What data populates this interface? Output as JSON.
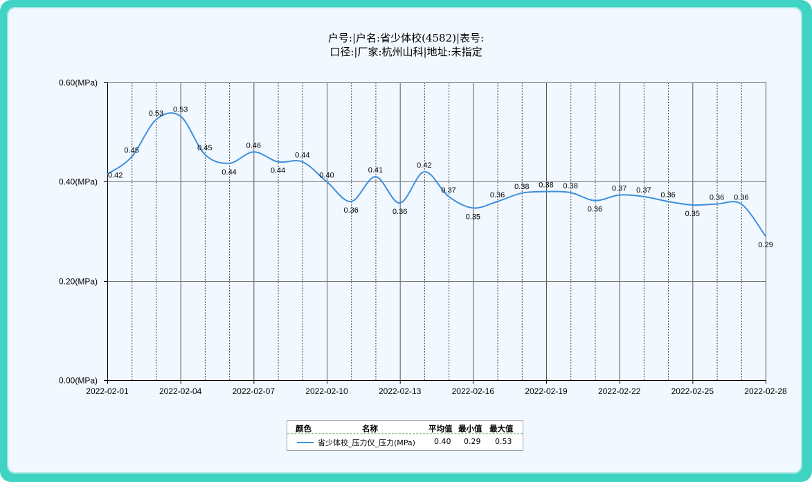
{
  "title_line1": "户号:|户名:省少体校(4582)|表号:",
  "title_line2": "口径:|厂家:杭州山科|地址:未指定",
  "colors": {
    "series": "#3d8fdc",
    "frame": "#3ed3c3",
    "panel": "#f2f8ff"
  },
  "legend": {
    "headers": {
      "color": "颜色",
      "name": "名称",
      "avg": "平均值",
      "min": "最小值",
      "max": "最大值"
    },
    "rows": [
      {
        "name": "省少体校_压力仪_压力(MPa)",
        "avg": "0.40",
        "min": "0.29",
        "max": "0.53"
      }
    ]
  },
  "chart_data": {
    "type": "line",
    "unit_suffix": "(MPa)",
    "ylim": [
      0,
      0.6
    ],
    "yticks": [
      0,
      0.2,
      0.4,
      0.6
    ],
    "ytick_labels": [
      "0.00(MPa)",
      "0.20(MPa)",
      "0.40(MPa)",
      "0.60(MPa)"
    ],
    "x_tick_labels": [
      "2022-02-01",
      "2022-02-04",
      "2022-02-07",
      "2022-02-10",
      "2022-02-13",
      "2022-02-16",
      "2022-02-19",
      "2022-02-22",
      "2022-02-25",
      "2022-02-28"
    ],
    "x": [
      "2022-02-01",
      "2022-02-02",
      "2022-02-03",
      "2022-02-04",
      "2022-02-05",
      "2022-02-06",
      "2022-02-07",
      "2022-02-08",
      "2022-02-09",
      "2022-02-10",
      "2022-02-11",
      "2022-02-12",
      "2022-02-13",
      "2022-02-14",
      "2022-02-15",
      "2022-02-16",
      "2022-02-17",
      "2022-02-18",
      "2022-02-19",
      "2022-02-20",
      "2022-02-21",
      "2022-02-22",
      "2022-02-23",
      "2022-02-24",
      "2022-02-25",
      "2022-02-26",
      "2022-02-27",
      "2022-02-28"
    ],
    "series": [
      {
        "name": "省少体校_压力仪_压力(MPa)",
        "values": [
          0.415,
          0.45,
          0.525,
          0.532,
          0.455,
          0.437,
          0.46,
          0.44,
          0.44,
          0.4,
          0.36,
          0.41,
          0.357,
          0.42,
          0.37,
          0.347,
          0.36,
          0.377,
          0.38,
          0.378,
          0.362,
          0.373,
          0.37,
          0.36,
          0.353,
          0.355,
          0.355,
          0.29
        ],
        "labels": [
          "0.42",
          "0.45",
          "0.53",
          "0.53",
          "0.45",
          "0.44",
          "0.46",
          "0.44",
          "0.44",
          "0.40",
          "0.36",
          "0.41",
          "0.36",
          "0.42",
          "0.37",
          "0.35",
          "0.36",
          "0.38",
          "0.38",
          "0.38",
          "0.36",
          "0.37",
          "0.37",
          "0.36",
          "0.35",
          "0.36",
          "0.36",
          "0.29"
        ]
      }
    ],
    "grid": true,
    "legend_position": "bottom"
  }
}
